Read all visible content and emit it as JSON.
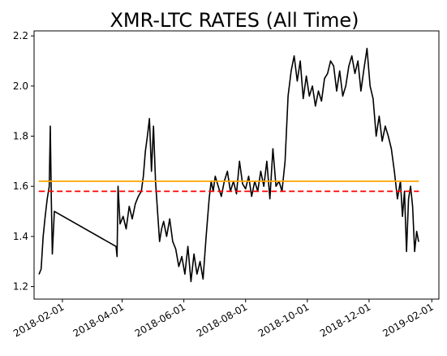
{
  "chart_data": {
    "type": "line",
    "title": "XMR-LTC RATES (All Time)",
    "xlabel": "",
    "ylabel": "",
    "ylim": [
      1.15,
      2.22
    ],
    "x_range": [
      "2018-01-04",
      "2019-02-08"
    ],
    "grid": false,
    "legend": "none",
    "x_ticks": [
      "2018-02-01",
      "2018-04-01",
      "2018-06-01",
      "2018-08-01",
      "2018-10-01",
      "2018-12-01",
      "2019-02-01"
    ],
    "y_ticks": [
      1.2,
      1.4,
      1.6,
      1.8,
      2.0,
      2.2
    ],
    "series": [
      {
        "color": "#000000",
        "style": "solid",
        "x": [
          "2018-01-09",
          "2018-01-11",
          "2018-01-13",
          "2018-01-15",
          "2018-01-17",
          "2018-01-19",
          "2018-01-20",
          "2018-01-21",
          "2018-01-22",
          "2018-01-24",
          "2018-03-26",
          "2018-03-27",
          "2018-03-28",
          "2018-03-30",
          "2018-04-02",
          "2018-04-05",
          "2018-04-08",
          "2018-04-11",
          "2018-04-14",
          "2018-04-17",
          "2018-04-20",
          "2018-04-22",
          "2018-04-24",
          "2018-04-26",
          "2018-04-28",
          "2018-04-30",
          "2018-05-02",
          "2018-05-04",
          "2018-05-06",
          "2018-05-08",
          "2018-05-10",
          "2018-05-12",
          "2018-05-15",
          "2018-05-18",
          "2018-05-21",
          "2018-05-24",
          "2018-05-27",
          "2018-05-30",
          "2018-06-02",
          "2018-06-05",
          "2018-06-08",
          "2018-06-11",
          "2018-06-14",
          "2018-06-17",
          "2018-06-20",
          "2018-06-23",
          "2018-06-26",
          "2018-06-28",
          "2018-06-30",
          "2018-07-02",
          "2018-07-05",
          "2018-07-08",
          "2018-07-11",
          "2018-07-14",
          "2018-07-17",
          "2018-07-20",
          "2018-07-23",
          "2018-07-26",
          "2018-07-29",
          "2018-08-01",
          "2018-08-04",
          "2018-08-07",
          "2018-08-10",
          "2018-08-13",
          "2018-08-16",
          "2018-08-19",
          "2018-08-22",
          "2018-08-25",
          "2018-08-28",
          "2018-08-31",
          "2018-09-03",
          "2018-09-06",
          "2018-09-09",
          "2018-09-12",
          "2018-09-15",
          "2018-09-18",
          "2018-09-21",
          "2018-09-24",
          "2018-09-27",
          "2018-09-30",
          "2018-10-03",
          "2018-10-06",
          "2018-10-09",
          "2018-10-12",
          "2018-10-15",
          "2018-10-18",
          "2018-10-21",
          "2018-10-24",
          "2018-10-27",
          "2018-10-30",
          "2018-11-02",
          "2018-11-05",
          "2018-11-08",
          "2018-11-11",
          "2018-11-14",
          "2018-11-17",
          "2018-11-20",
          "2018-11-23",
          "2018-11-26",
          "2018-11-29",
          "2018-12-02",
          "2018-12-05",
          "2018-12-08",
          "2018-12-11",
          "2018-12-14",
          "2018-12-17",
          "2018-12-20",
          "2018-12-23",
          "2018-12-26",
          "2018-12-29",
          "2019-01-01",
          "2019-01-03",
          "2019-01-05",
          "2019-01-07",
          "2019-01-09",
          "2019-01-11",
          "2019-01-13",
          "2019-01-15",
          "2019-01-17",
          "2019-01-19"
        ],
        "values": [
          1.25,
          1.27,
          1.4,
          1.48,
          1.55,
          1.6,
          1.84,
          1.56,
          1.33,
          1.5,
          1.36,
          1.32,
          1.6,
          1.45,
          1.48,
          1.43,
          1.52,
          1.47,
          1.53,
          1.56,
          1.58,
          1.64,
          1.74,
          1.8,
          1.87,
          1.66,
          1.84,
          1.62,
          1.5,
          1.38,
          1.43,
          1.46,
          1.4,
          1.47,
          1.38,
          1.35,
          1.28,
          1.32,
          1.25,
          1.36,
          1.22,
          1.33,
          1.25,
          1.3,
          1.23,
          1.4,
          1.55,
          1.62,
          1.58,
          1.64,
          1.6,
          1.56,
          1.62,
          1.66,
          1.58,
          1.62,
          1.57,
          1.7,
          1.61,
          1.59,
          1.64,
          1.56,
          1.62,
          1.58,
          1.66,
          1.6,
          1.7,
          1.55,
          1.75,
          1.6,
          1.62,
          1.58,
          1.7,
          1.96,
          2.06,
          2.12,
          2.02,
          2.1,
          1.95,
          2.04,
          1.96,
          2.0,
          1.92,
          1.98,
          1.94,
          2.03,
          2.05,
          2.1,
          2.08,
          1.98,
          2.06,
          1.96,
          2.0,
          2.08,
          2.12,
          2.05,
          2.1,
          1.98,
          2.07,
          2.15,
          2.0,
          1.95,
          1.8,
          1.88,
          1.78,
          1.84,
          1.8,
          1.75,
          1.66,
          1.55,
          1.62,
          1.48,
          1.58,
          1.34,
          1.55,
          1.6,
          1.52,
          1.34,
          1.42,
          1.38
        ]
      },
      {
        "color": "#ffa500",
        "style": "solid",
        "x": [
          "2018-01-09",
          "2019-01-19"
        ],
        "values": [
          1.62,
          1.62
        ]
      },
      {
        "color": "#ff0000",
        "style": "dashed",
        "x": [
          "2018-01-09",
          "2019-01-19"
        ],
        "values": [
          1.58,
          1.58
        ]
      }
    ]
  }
}
